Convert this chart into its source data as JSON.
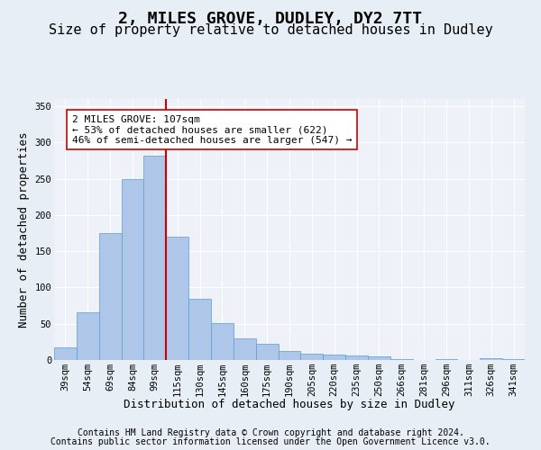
{
  "title_line1": "2, MILES GROVE, DUDLEY, DY2 7TT",
  "title_line2": "Size of property relative to detached houses in Dudley",
  "xlabel": "Distribution of detached houses by size in Dudley",
  "ylabel": "Number of detached properties",
  "categories": [
    "39sqm",
    "54sqm",
    "69sqm",
    "84sqm",
    "99sqm",
    "115sqm",
    "130sqm",
    "145sqm",
    "160sqm",
    "175sqm",
    "190sqm",
    "205sqm",
    "220sqm",
    "235sqm",
    "250sqm",
    "266sqm",
    "281sqm",
    "296sqm",
    "311sqm",
    "326sqm",
    "341sqm"
  ],
  "values": [
    18,
    66,
    175,
    249,
    282,
    170,
    85,
    51,
    30,
    22,
    13,
    9,
    7,
    6,
    5,
    1,
    0,
    1,
    0,
    2,
    1
  ],
  "bar_color": "#aec6e8",
  "bar_edge_color": "#5b9bd5",
  "vline_x": 4.5,
  "vline_color": "#cc0000",
  "annotation_text": "2 MILES GROVE: 107sqm\n← 53% of detached houses are smaller (622)\n46% of semi-detached houses are larger (547) →",
  "annotation_box_color": "#ffffff",
  "annotation_box_edge": "#cc0000",
  "ylim": [
    0,
    360
  ],
  "yticks": [
    0,
    50,
    100,
    150,
    200,
    250,
    300,
    350
  ],
  "bg_color": "#e8eef5",
  "plot_bg_color": "#eef2f8",
  "footer_line1": "Contains HM Land Registry data © Crown copyright and database right 2024.",
  "footer_line2": "Contains public sector information licensed under the Open Government Licence v3.0.",
  "title_fontsize": 13,
  "subtitle_fontsize": 11,
  "axis_label_fontsize": 9,
  "tick_fontsize": 7.5,
  "annotation_fontsize": 8,
  "footer_fontsize": 7
}
